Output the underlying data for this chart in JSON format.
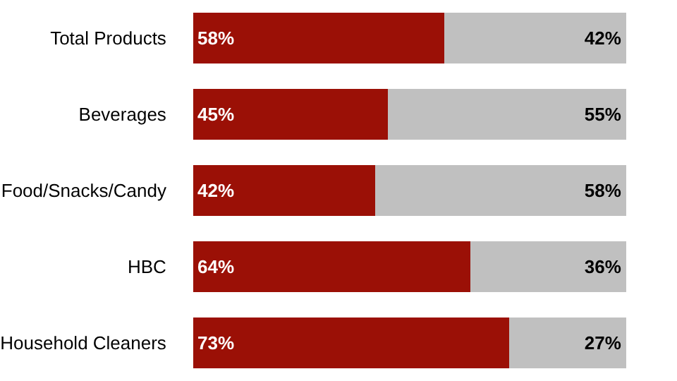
{
  "chart_data": {
    "type": "bar",
    "orientation": "horizontal",
    "stacked": true,
    "data_labels": true,
    "legend": false,
    "categories": [
      "Total Products",
      "Beverages",
      "Food/Snacks/Candy",
      "HBC",
      "Household Cleaners"
    ],
    "series": [
      {
        "color": "#9b1006",
        "values": [
          58,
          45,
          42,
          64,
          73
        ],
        "value_labels": [
          "58%",
          "45%",
          "42%",
          "64%",
          "73%"
        ]
      },
      {
        "color": "#c0c0c0",
        "values": [
          42,
          55,
          58,
          36,
          27
        ],
        "value_labels": [
          "42%",
          "55%",
          "58%",
          "36%",
          "27%"
        ]
      }
    ]
  }
}
